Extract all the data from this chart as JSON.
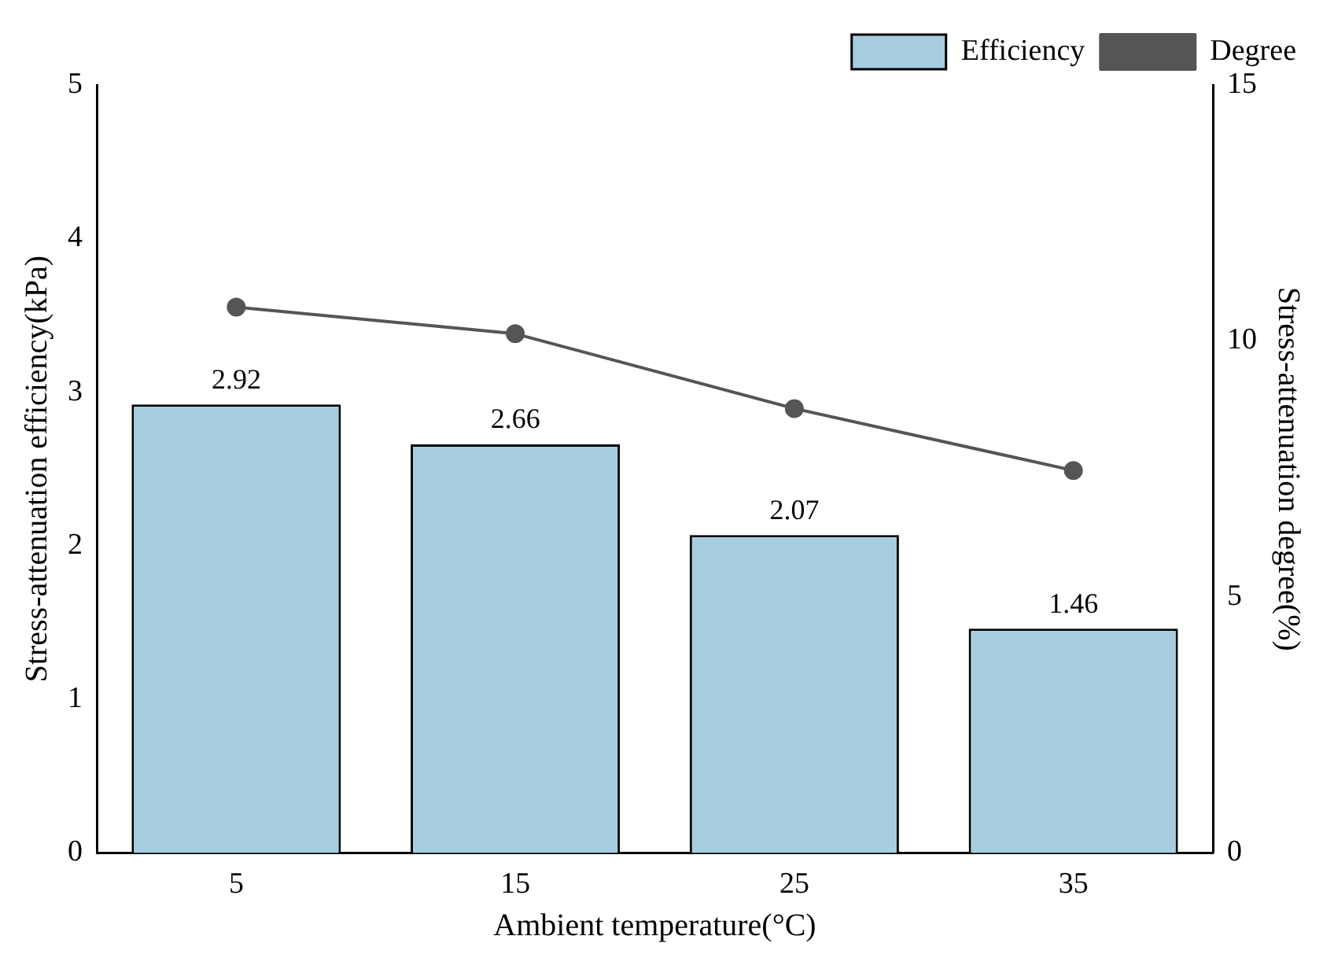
{
  "chart_data": {
    "type": "bar",
    "xlabel": "Ambient temperature(°C)",
    "ylabel": "Stress-attenuation efficiency(kPa)",
    "y2label": "Stress-attenuation degree(%)",
    "categories": [
      "5",
      "15",
      "25",
      "35"
    ],
    "series": [
      {
        "name": "Efficiency",
        "color": "#a6cde0",
        "values": [
          2.92,
          2.66,
          2.07,
          1.46
        ],
        "value_labels": [
          "2.92",
          "2.66",
          "2.07",
          "1.46"
        ]
      },
      {
        "name": "Degree",
        "type": "line",
        "axis": "y2",
        "color": "#555555",
        "values": [
          10.66,
          10.14,
          8.68,
          7.47
        ]
      }
    ],
    "ylim": [
      0,
      5
    ],
    "yticks": [
      0,
      1,
      2,
      3,
      4,
      5
    ],
    "y2lim": [
      0,
      15
    ],
    "y2ticks": [
      0,
      5,
      10,
      15
    ],
    "grid": false,
    "legend": "top right",
    "marker": "circle",
    "line_style": "solid"
  }
}
